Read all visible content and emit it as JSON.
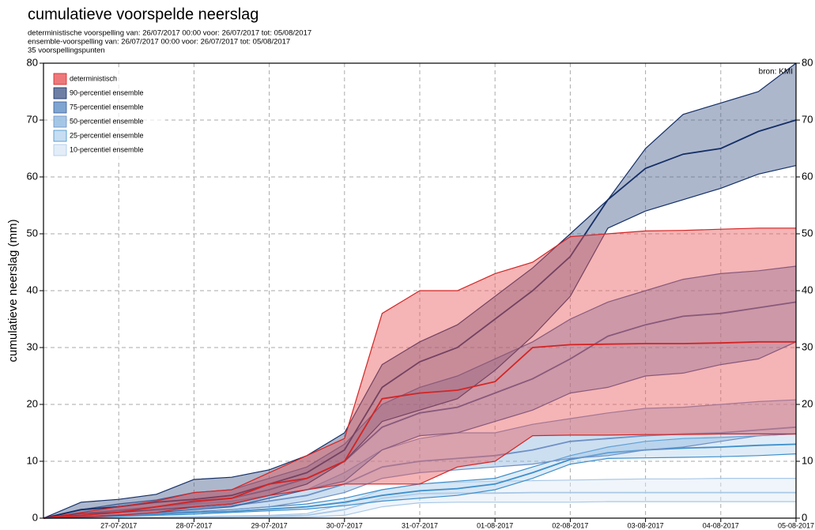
{
  "chart_data": {
    "type": "band",
    "title": "cumulatieve voorspelde neerslag",
    "subtitle_lines": [
      "deterministische voorspelling van: 26/07/2017 00:00 voor: 26/07/2017 tot: 05/08/2017",
      "ensemble-voorspelling van: 26/07/2017 00:00 voor: 26/07/2017 tot: 05/08/2017",
      "35 voorspellingspunten"
    ],
    "y_label": "cumulatieve neerslag (mm)",
    "source": "bron: KMI",
    "x": [
      0,
      0.5,
      1,
      1.5,
      2,
      2.5,
      3,
      3.5,
      4,
      4.5,
      5,
      5.5,
      6,
      6.5,
      7,
      7.5,
      8,
      8.5,
      9,
      9.5,
      10
    ],
    "xlim": [
      0,
      10
    ],
    "xticks": [
      {
        "value": 1,
        "label": "27-07-2017"
      },
      {
        "value": 2,
        "label": "28-07-2017"
      },
      {
        "value": 3,
        "label": "29-07-2017"
      },
      {
        "value": 4,
        "label": "30-07-2017"
      },
      {
        "value": 5,
        "label": "31-07-2017"
      },
      {
        "value": 6,
        "label": "01-08-2017"
      },
      {
        "value": 7,
        "label": "02-08-2017"
      },
      {
        "value": 8,
        "label": "03-08-2017"
      },
      {
        "value": 9,
        "label": "04-08-2017"
      },
      {
        "value": 10,
        "label": "05-08-2017"
      }
    ],
    "ylim": [
      0,
      80
    ],
    "yticks": [
      0,
      10,
      20,
      30,
      40,
      50,
      60,
      70,
      80
    ],
    "grid": true,
    "legend": "upper-left",
    "series": [
      {
        "name": "10-percentiel ensemble",
        "color": "#dce9f6",
        "line_color": "#a9c8e6",
        "upper": [
          0,
          0,
          0.1,
          0.2,
          0.3,
          0.4,
          0.5,
          0.8,
          2.5,
          5,
          6,
          6.3,
          6.5,
          6.6,
          6.7,
          6.8,
          6.9,
          6.9,
          7,
          7,
          7
        ],
        "middle": [
          0,
          0,
          0,
          0.1,
          0.2,
          0.2,
          0.3,
          0.5,
          1.5,
          3.5,
          4.3,
          4.4,
          4.4,
          4.5,
          4.5,
          4.5,
          4.5,
          4.5,
          4.5,
          4.5,
          4.5
        ],
        "lower": [
          0,
          0,
          0,
          0,
          0,
          0,
          0.1,
          0.2,
          0.5,
          2,
          2.7,
          2.8,
          2.8,
          2.8,
          2.8,
          2.9,
          2.9,
          2.9,
          2.9,
          2.9,
          2.9
        ]
      },
      {
        "name": "25-percentiel ensemble",
        "color": "#b9d5ee",
        "line_color": "#3d8fcb",
        "upper": [
          0,
          0.3,
          0.6,
          0.9,
          1.2,
          1.5,
          2,
          2.5,
          3.5,
          5,
          6,
          6.5,
          7,
          9,
          11,
          12.5,
          13.5,
          14,
          14.2,
          14.5,
          14.8
        ],
        "middle": [
          0,
          0.2,
          0.4,
          0.7,
          1,
          1.2,
          1.6,
          2,
          2.8,
          4,
          4.8,
          5.2,
          6,
          8,
          10.3,
          11.5,
          12,
          12.3,
          12.5,
          12.8,
          13
        ],
        "lower": [
          0,
          0.1,
          0.3,
          0.5,
          0.7,
          1,
          1.3,
          1.6,
          2.2,
          3,
          3.5,
          4,
          5,
          7,
          9.5,
          10.5,
          10.6,
          10.7,
          10.8,
          11,
          11.3
        ]
      },
      {
        "name": "50-percentiel ensemble",
        "color": "#8fb9e0",
        "line_color": "#6f8fc4",
        "upper": [
          0,
          0.8,
          1.5,
          2,
          2.5,
          3,
          4,
          5,
          8,
          12,
          14,
          15,
          15,
          16.5,
          17.5,
          18.5,
          19.3,
          19.5,
          20,
          20.5,
          20.8
        ],
        "middle": [
          0,
          0.5,
          1,
          1.3,
          1.8,
          2.2,
          3,
          4,
          6,
          9,
          10,
          10.5,
          11,
          12,
          13.5,
          14,
          14.5,
          14.8,
          15,
          15.5,
          16
        ],
        "lower": [
          0,
          0.2,
          0.5,
          0.8,
          1.2,
          1.5,
          2,
          3,
          4.5,
          7,
          8,
          8.5,
          9,
          9.5,
          10.5,
          11,
          12,
          12.5,
          13.5,
          14.5,
          14.8
        ]
      },
      {
        "name": "75-percentiel ensemble",
        "color": "#5f8fc6",
        "line_color": "#3a5a98",
        "upper": [
          0,
          1.5,
          2.5,
          3.2,
          4.5,
          5,
          7,
          9,
          13,
          20,
          23,
          25,
          28,
          31,
          35,
          38,
          40,
          42,
          43,
          43.5,
          44.3
        ],
        "middle": [
          0,
          0.8,
          1.3,
          2,
          2.8,
          3.5,
          5,
          7,
          10,
          16,
          18.5,
          19.5,
          22,
          24.5,
          28,
          32,
          34,
          35.5,
          36,
          37,
          38
        ],
        "lower": [
          0,
          0.3,
          0.6,
          1,
          1.5,
          2,
          3.5,
          5,
          6.5,
          12,
          14.5,
          15,
          17,
          19,
          22,
          23,
          25,
          25.5,
          27,
          28,
          31
        ]
      },
      {
        "name": "90-percentiel ensemble",
        "color": "#4a5f8f",
        "line_color": "#142f66",
        "upper": [
          0,
          2.8,
          3.3,
          4.2,
          6.8,
          7.2,
          8.5,
          11,
          15,
          27,
          31,
          34,
          39,
          44,
          50,
          56,
          65,
          71,
          73,
          75,
          80
        ],
        "middle": [
          0,
          1.5,
          2,
          2.8,
          3.3,
          4,
          6,
          8,
          12,
          23,
          27.5,
          30,
          35,
          40,
          46,
          56,
          61.5,
          64,
          65,
          68,
          70
        ],
        "lower": [
          0,
          0.8,
          1,
          1.5,
          2,
          2.5,
          4,
          6,
          10,
          17,
          19,
          21,
          26,
          32,
          39,
          51,
          54,
          56,
          58,
          60.5,
          62
        ]
      },
      {
        "name": "deterministisch",
        "color": "#e8585a",
        "line_color": "#d42424",
        "upper": [
          0,
          1,
          2,
          3,
          4.5,
          5,
          8,
          11,
          14,
          36,
          40,
          40,
          43,
          45,
          49.5,
          50,
          50.5,
          50.6,
          50.8,
          51,
          51
        ],
        "middle": [
          0,
          0.5,
          1,
          2,
          3,
          3.5,
          6,
          7,
          10,
          21,
          22,
          22.5,
          24,
          30,
          30.5,
          30.6,
          30.7,
          30.7,
          30.8,
          31,
          31
        ],
        "lower": [
          0,
          0.2,
          0.5,
          1,
          2,
          2.5,
          4,
          5,
          6,
          6,
          6,
          9,
          10,
          14.5,
          14.6,
          14.6,
          14.7,
          14.7,
          14.8,
          14.8,
          14.8
        ]
      }
    ]
  }
}
